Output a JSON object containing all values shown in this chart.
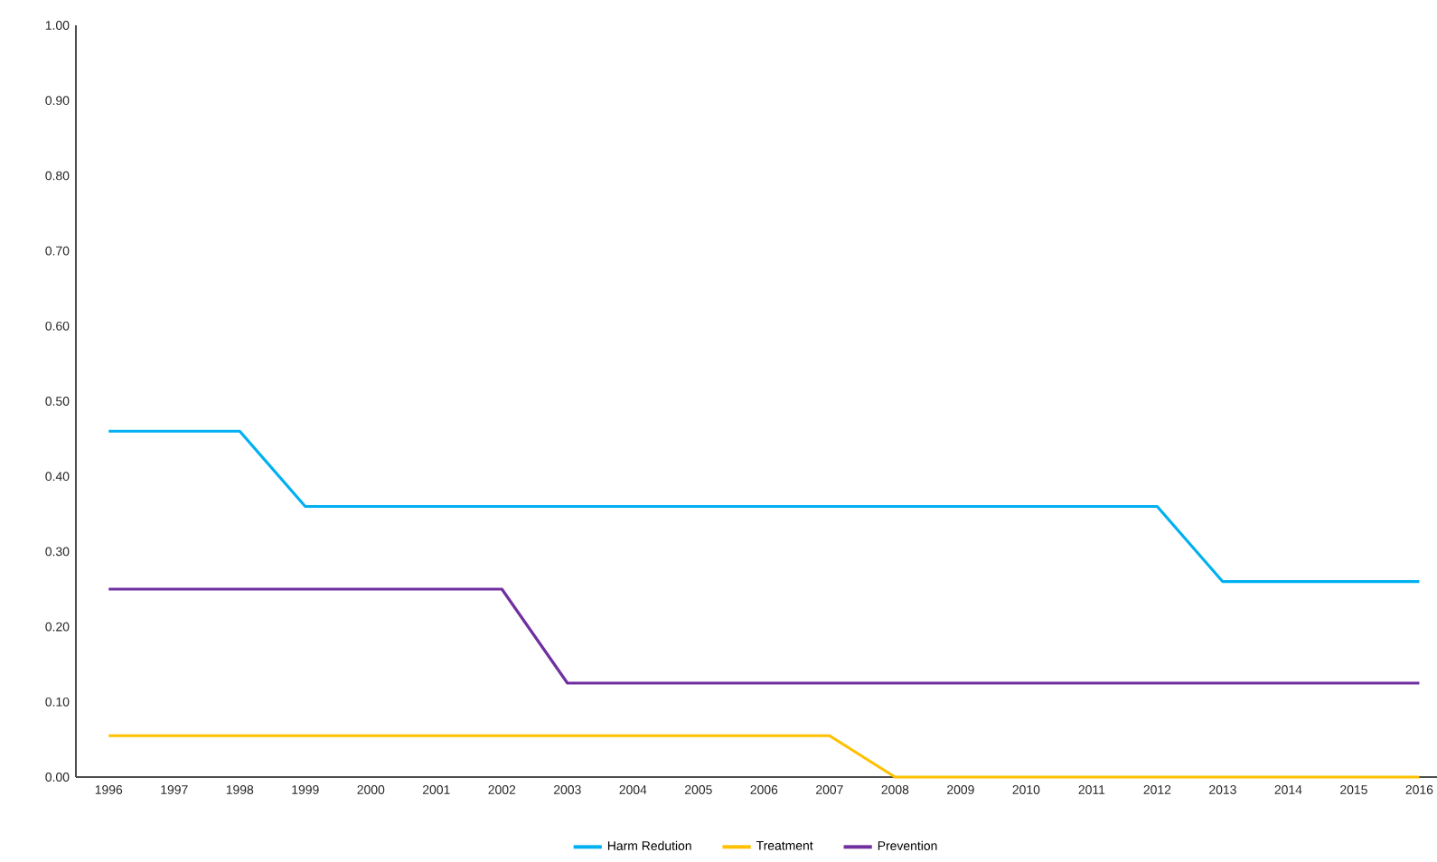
{
  "chart_data": {
    "type": "line",
    "categories": [
      "1996",
      "1997",
      "1998",
      "1999",
      "2000",
      "2001",
      "2002",
      "2003",
      "2004",
      "2005",
      "2006",
      "2007",
      "2008",
      "2009",
      "2010",
      "2011",
      "2012",
      "2013",
      "2014",
      "2015",
      "2016"
    ],
    "series": [
      {
        "name": "Harm Redution",
        "color": "#00b0f0",
        "values": [
          0.46,
          0.46,
          0.46,
          0.36,
          0.36,
          0.36,
          0.36,
          0.36,
          0.36,
          0.36,
          0.36,
          0.36,
          0.36,
          0.36,
          0.36,
          0.36,
          0.36,
          0.26,
          0.26,
          0.26,
          0.26
        ]
      },
      {
        "name": "Treatment",
        "color": "#ffc000",
        "values": [
          0.055,
          0.055,
          0.055,
          0.055,
          0.055,
          0.055,
          0.055,
          0.055,
          0.055,
          0.055,
          0.055,
          0.055,
          0,
          0,
          0,
          0,
          0,
          0,
          0,
          0,
          0
        ]
      },
      {
        "name": "Prevention",
        "color": "#7030a0",
        "values": [
          0.25,
          0.25,
          0.25,
          0.25,
          0.25,
          0.25,
          0.25,
          0.125,
          0.125,
          0.125,
          0.125,
          0.125,
          0.125,
          0.125,
          0.125,
          0.125,
          0.125,
          0.125,
          0.125,
          0.125,
          0.125
        ]
      }
    ],
    "ylim": [
      0,
      1
    ],
    "yticks": [
      {
        "value": 0,
        "label": "0.00"
      },
      {
        "value": 0.1,
        "label": "0.10"
      },
      {
        "value": 0.2,
        "label": "0.20"
      },
      {
        "value": 0.3,
        "label": "0.30"
      },
      {
        "value": 0.4,
        "label": "0.40"
      },
      {
        "value": 0.5,
        "label": "0.50"
      },
      {
        "value": 0.6,
        "label": "0.60"
      },
      {
        "value": 0.7,
        "label": "0.70"
      },
      {
        "value": 0.8,
        "label": "0.80"
      },
      {
        "value": 0.9,
        "label": "0.90"
      },
      {
        "value": 1,
        "label": "1.00"
      }
    ],
    "grid": false,
    "legend": "bottom",
    "marker": "none",
    "line_style": "solid"
  }
}
